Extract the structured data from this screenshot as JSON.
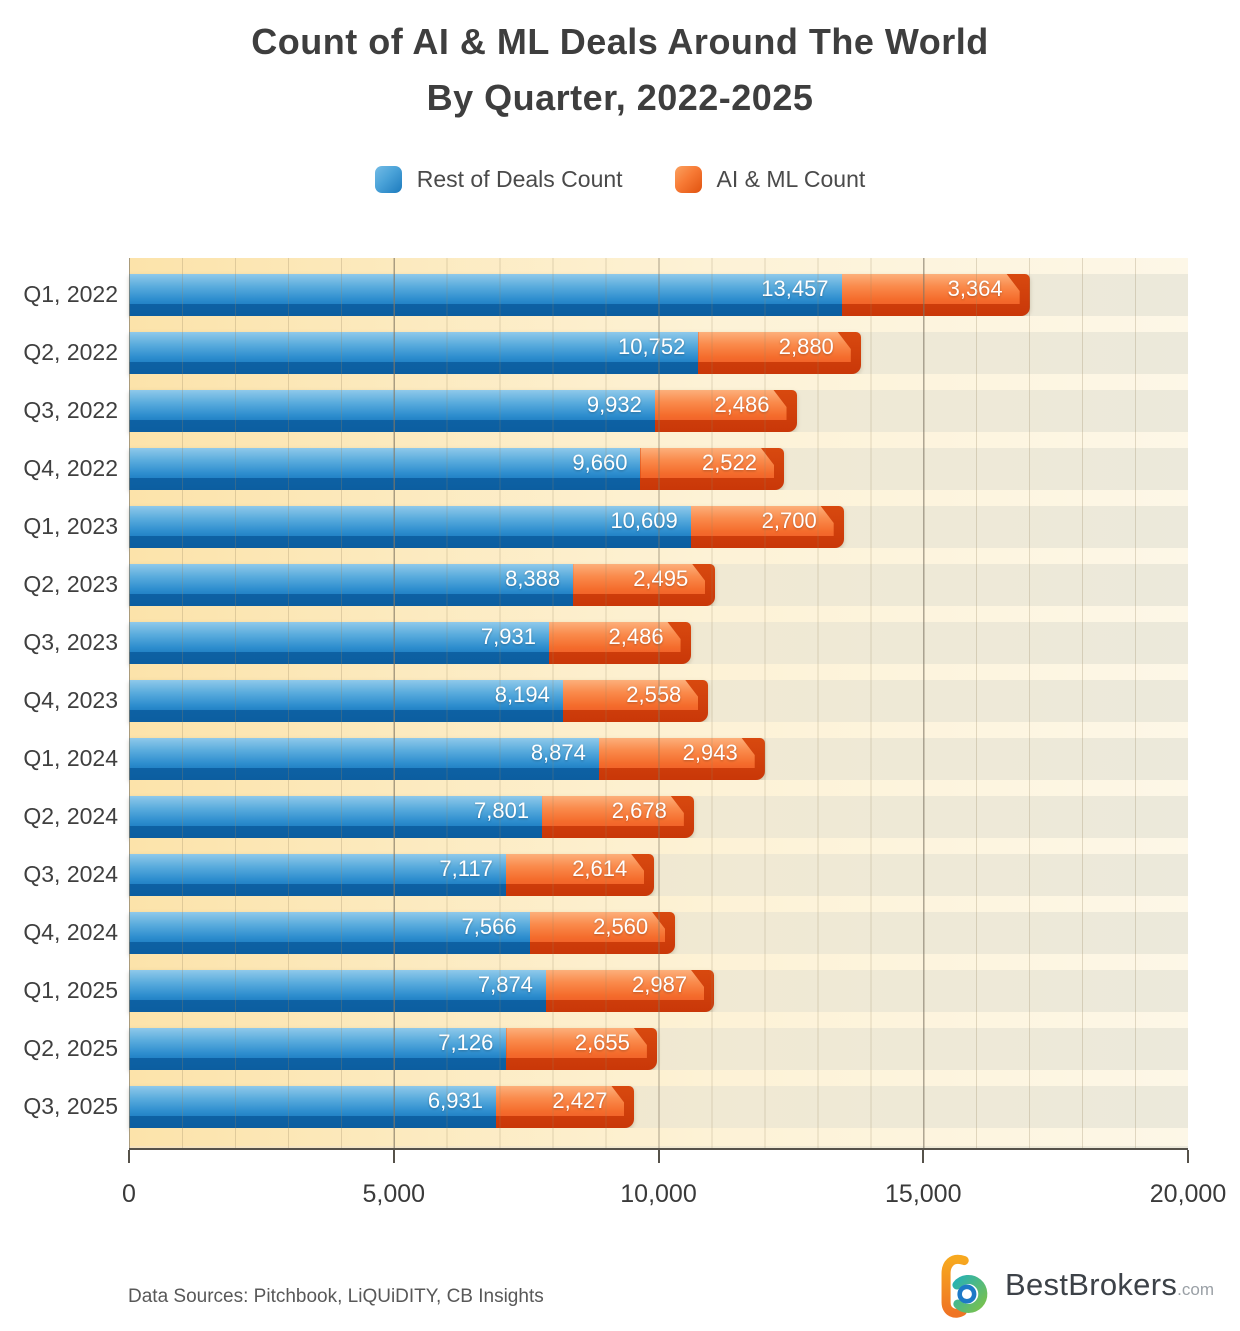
{
  "title": {
    "line1": "Count of AI & ML Deals Around The World",
    "line2": "By Quarter, 2022-2025"
  },
  "legend": {
    "items": [
      {
        "label": "Rest of Deals Count",
        "color": "#2e8fd0"
      },
      {
        "label": "AI & ML Count",
        "color": "#f2652a"
      }
    ]
  },
  "footer": {
    "sources": "Data Sources: Pitchbook, LiQUiDITY, CB Insights",
    "brand": "BestBrokers",
    "brand_suffix": ".com"
  },
  "colors": {
    "blue_face": "#2e8fd0",
    "blue_shadow": "#0e63a6",
    "orange_face": "#f2652a",
    "orange_shadow": "#cf3b0c",
    "plot_band_left": "#fce3aa",
    "plot_band_right": "#ece9db",
    "title_text": "#3e3e3e"
  },
  "chart_data": {
    "type": "bar",
    "orientation": "horizontal",
    "stacked": true,
    "title": "Count of AI & ML Deals Around The World By Quarter, 2022-2025",
    "categories": [
      "Q1, 2022",
      "Q2, 2022",
      "Q3, 2022",
      "Q4, 2022",
      "Q1, 2023",
      "Q2, 2023",
      "Q3, 2023",
      "Q4, 2023",
      "Q1, 2024",
      "Q2, 2024",
      "Q3, 2024",
      "Q4, 2024",
      "Q1, 2025",
      "Q2, 2025",
      "Q3, 2025"
    ],
    "series": [
      {
        "name": "Rest of Deals Count",
        "color": "#2e8fd0",
        "values": [
          13457,
          10752,
          9932,
          9660,
          10609,
          8388,
          7931,
          8194,
          8874,
          7801,
          7117,
          7566,
          7874,
          7126,
          6931
        ]
      },
      {
        "name": "AI & ML Count",
        "color": "#f2652a",
        "values": [
          3364,
          2880,
          2486,
          2522,
          2700,
          2495,
          2486,
          2558,
          2943,
          2678,
          2614,
          2560,
          2987,
          2655,
          2427
        ]
      }
    ],
    "xlabel": "",
    "ylabel": "",
    "xlim": [
      0,
      20000
    ],
    "xticks": [
      0,
      5000,
      10000,
      15000,
      20000
    ],
    "xtick_labels": [
      "0",
      "5,000",
      "10,000",
      "15,000",
      "20,000"
    ],
    "grid": "vertical, minor every 1000, major every 5000",
    "legend_position": "top",
    "value_labels": "inside-end, comma formatted"
  }
}
